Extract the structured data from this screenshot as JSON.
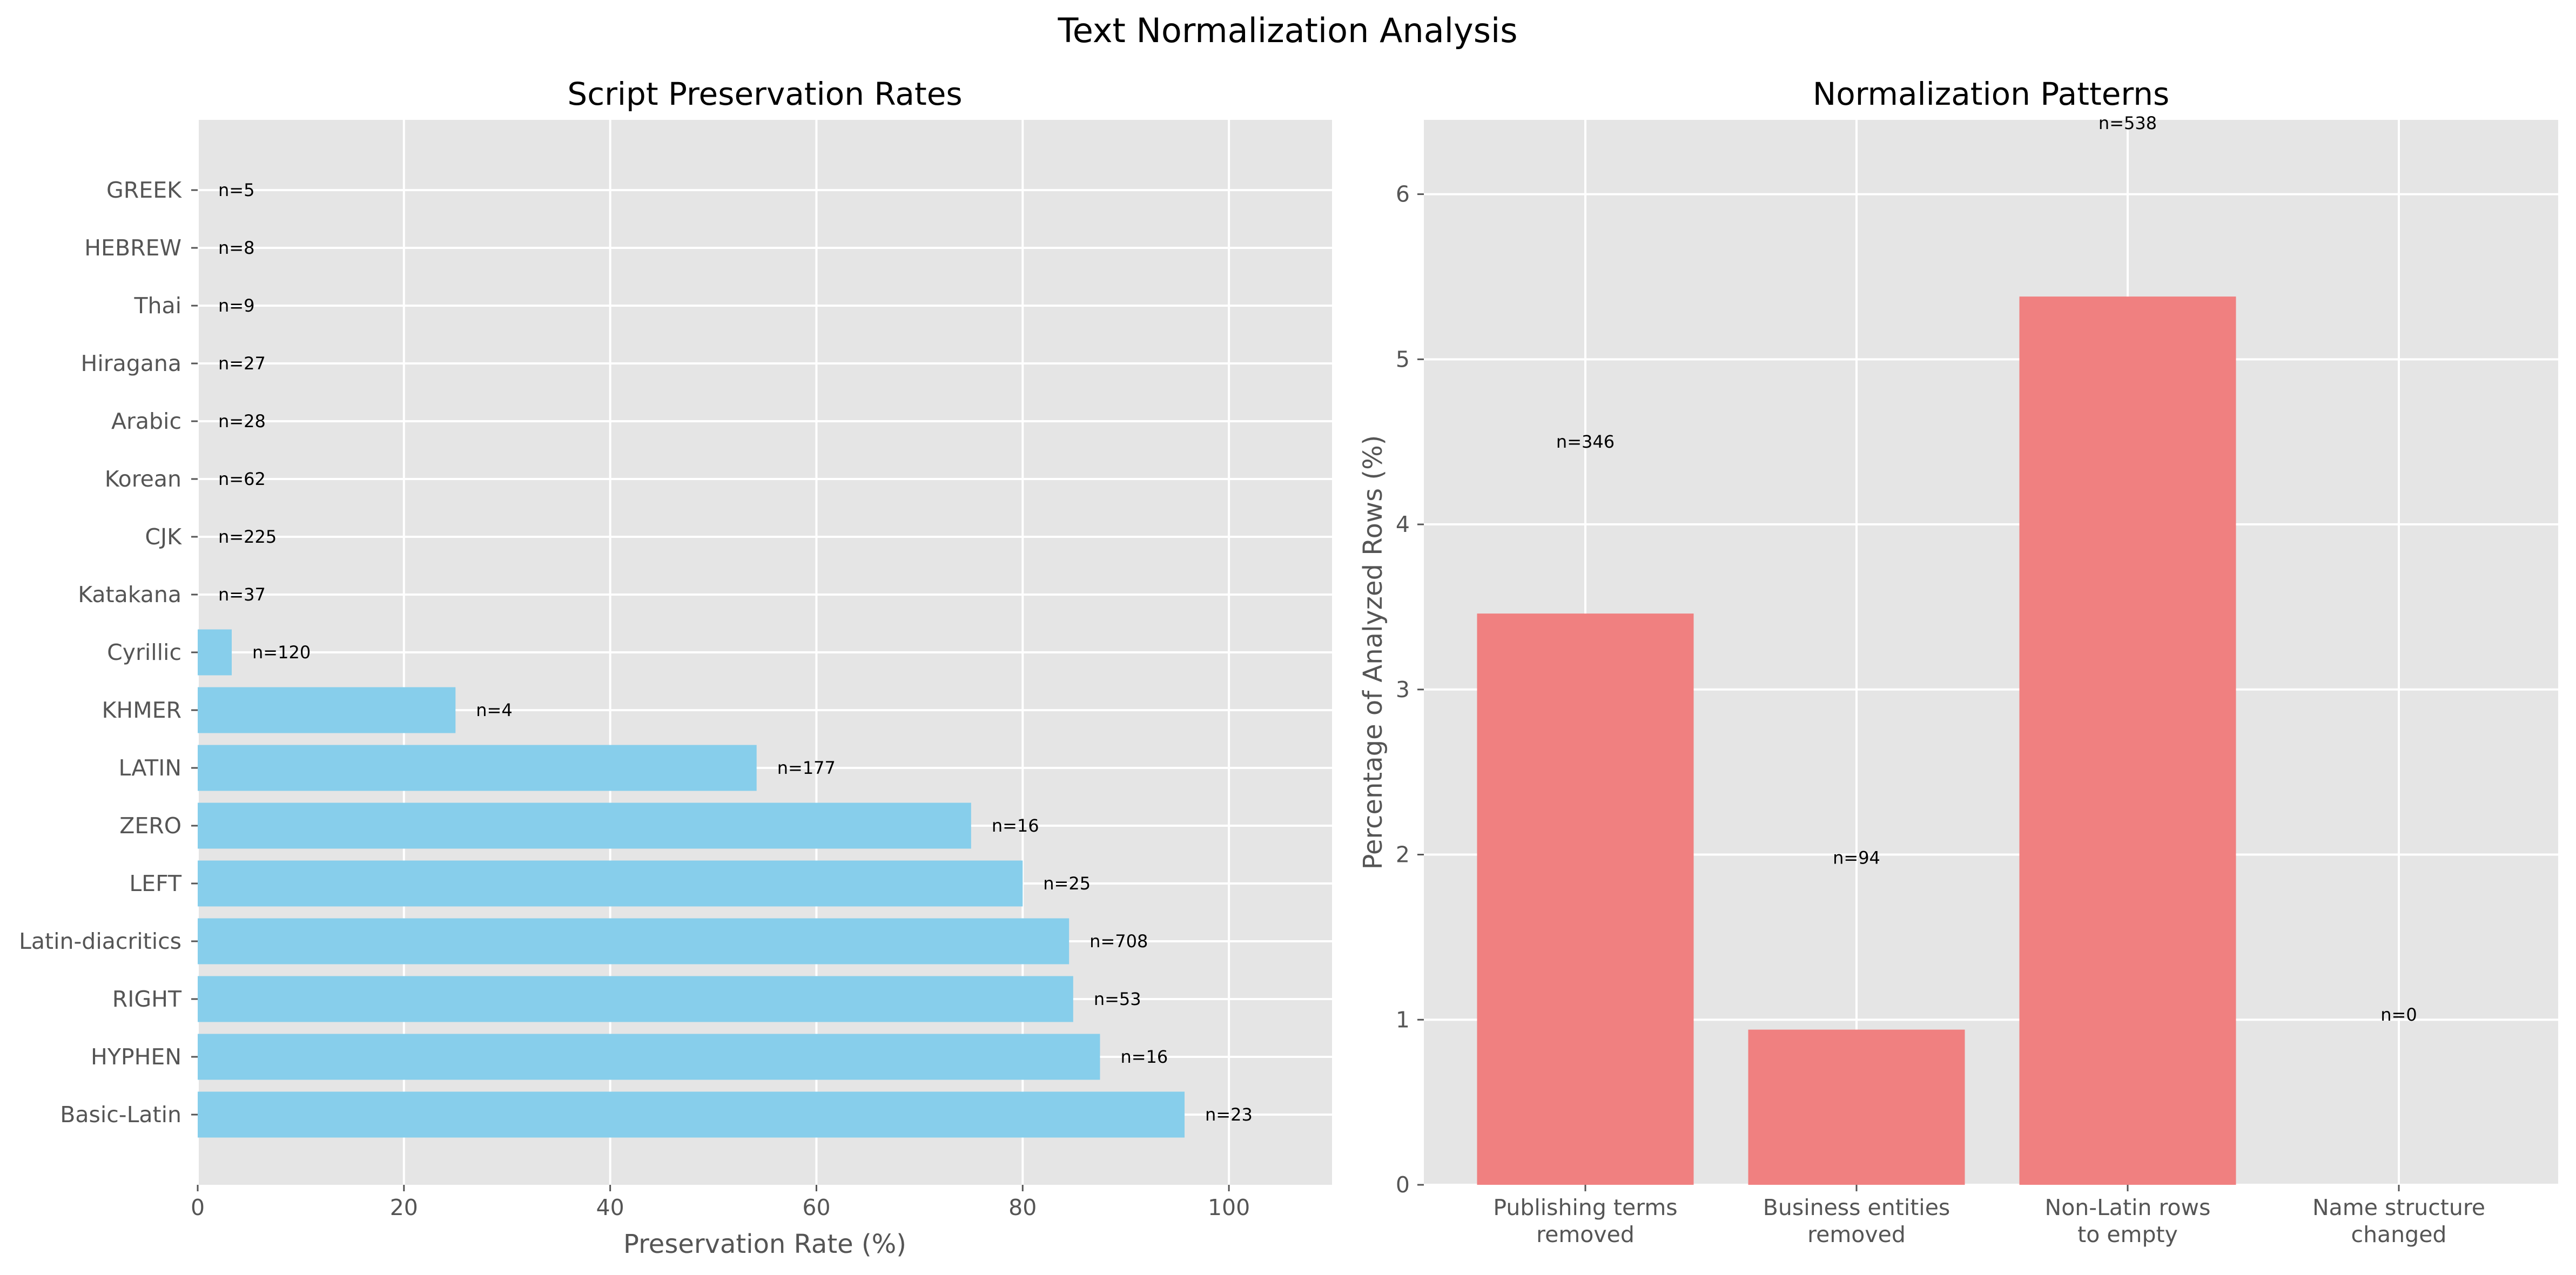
{
  "figure": {
    "title": "Text Normalization Analysis"
  },
  "colors": {
    "panel_bg": "#e5e5e5",
    "preservation_bar": "#87ceeb",
    "pattern_bar": "#f08080"
  },
  "chart_data": [
    {
      "type": "bar",
      "orientation": "horizontal",
      "title": "Script Preservation Rates",
      "xlabel": "Preservation Rate (%)",
      "ylabel": "",
      "xlim": [
        0,
        110
      ],
      "xticks": [
        0,
        20,
        40,
        60,
        80,
        100
      ],
      "grid": true,
      "categories": [
        "GREEK",
        "HEBREW",
        "Thai",
        "Hiragana",
        "Arabic",
        "Korean",
        "CJK",
        "Katakana",
        "Cyrillic",
        "KHMER",
        "LATIN",
        "ZERO",
        "LEFT",
        "Latin-diacritics",
        "RIGHT",
        "HYPHEN",
        "Basic-Latin"
      ],
      "values": [
        0,
        0,
        0,
        0,
        0,
        0,
        0,
        0,
        3.3,
        25.0,
        54.2,
        75.0,
        80.0,
        84.5,
        84.9,
        87.5,
        95.7
      ],
      "labels": [
        "n=5",
        "n=8",
        "n=9",
        "n=27",
        "n=28",
        "n=62",
        "n=225",
        "n=37",
        "n=120",
        "n=4",
        "n=177",
        "n=16",
        "n=25",
        "n=708",
        "n=53",
        "n=16",
        "n=23"
      ]
    },
    {
      "type": "bar",
      "title": "Normalization Patterns",
      "xlabel": "",
      "ylabel": "Percentage of Analyzed Rows (%)",
      "ylim": [
        0,
        6.45
      ],
      "yticks": [
        0,
        1,
        2,
        3,
        4,
        5,
        6
      ],
      "grid": true,
      "categories": [
        [
          "Publishing terms",
          "removed"
        ],
        [
          "Business entities",
          "removed"
        ],
        [
          "Non-Latin rows",
          "to empty"
        ],
        [
          "Name structure",
          "changed"
        ]
      ],
      "values": [
        3.46,
        0.94,
        5.38,
        0.0
      ],
      "labels": [
        "n=346",
        "n=94",
        "n=538",
        "n=0"
      ],
      "label_y": [
        4.5,
        1.98,
        6.43,
        1.03
      ]
    }
  ]
}
